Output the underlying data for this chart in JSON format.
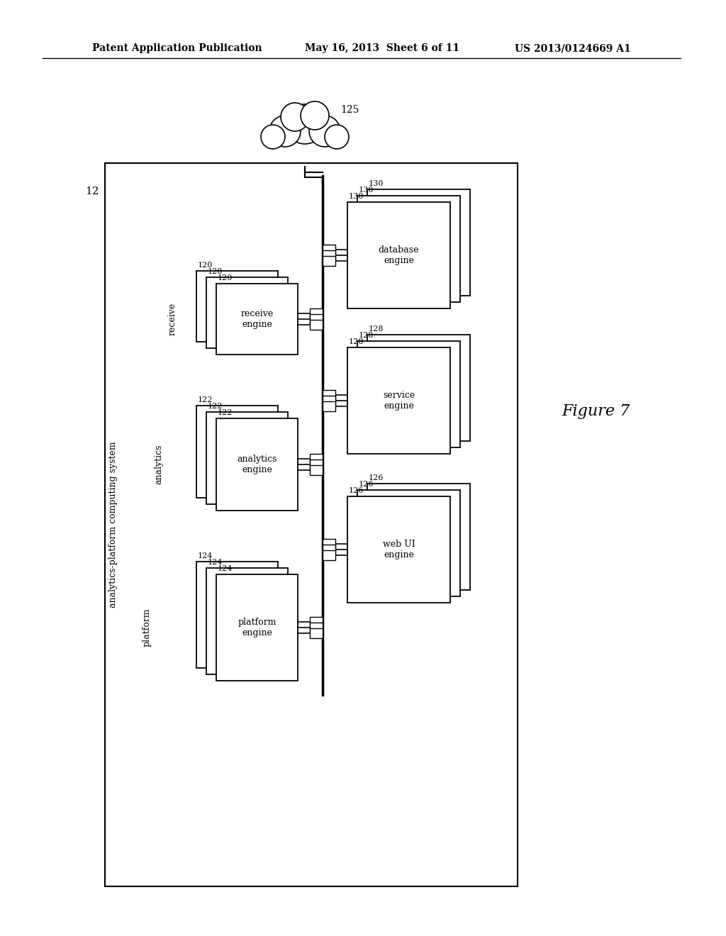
{
  "bg_color": "#ffffff",
  "header_left": "Patent Application Publication",
  "header_mid": "May 16, 2013  Sheet 6 of 11",
  "header_right": "US 2013/0124669 A1",
  "figure_label": "Figure 7",
  "cloud_label": "125",
  "system_label": "12",
  "system_text": "analytics-platform computing system"
}
